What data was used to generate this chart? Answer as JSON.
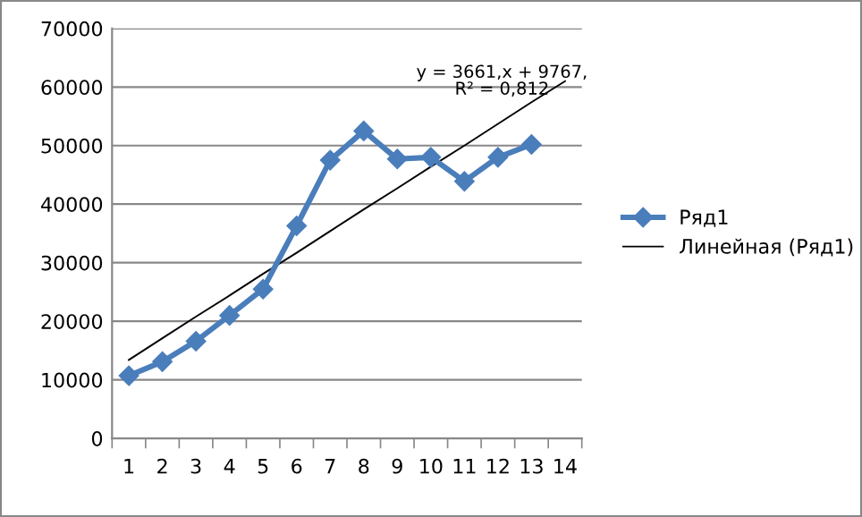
{
  "chart_data": {
    "type": "line",
    "categories": [
      "1",
      "2",
      "3",
      "4",
      "5",
      "6",
      "7",
      "8",
      "9",
      "10",
      "11",
      "12",
      "13",
      "14"
    ],
    "series": [
      {
        "name": "Ряд1",
        "color": "#4a7ebb",
        "marker": "diamond",
        "values": [
          10700,
          13100,
          16600,
          21000,
          25500,
          36300,
          47500,
          52500,
          47700,
          48000,
          43900,
          48000,
          50200,
          null
        ]
      },
      {
        "name": "Линейная (Ряд1)",
        "color": "#000000",
        "line_style": "solid",
        "values": [
          13400,
          17100,
          20800,
          24400,
          28100,
          31700,
          35400,
          39100,
          42700,
          46400,
          50000,
          53700,
          57400,
          61000
        ]
      }
    ],
    "annotations": [
      "y = 3661,x + 9767,\nR² = 0,812"
    ],
    "ylim": [
      0,
      70000
    ],
    "yticks": [
      0,
      10000,
      20000,
      30000,
      40000,
      50000,
      60000,
      70000
    ],
    "grid": "y",
    "legend": "right"
  }
}
